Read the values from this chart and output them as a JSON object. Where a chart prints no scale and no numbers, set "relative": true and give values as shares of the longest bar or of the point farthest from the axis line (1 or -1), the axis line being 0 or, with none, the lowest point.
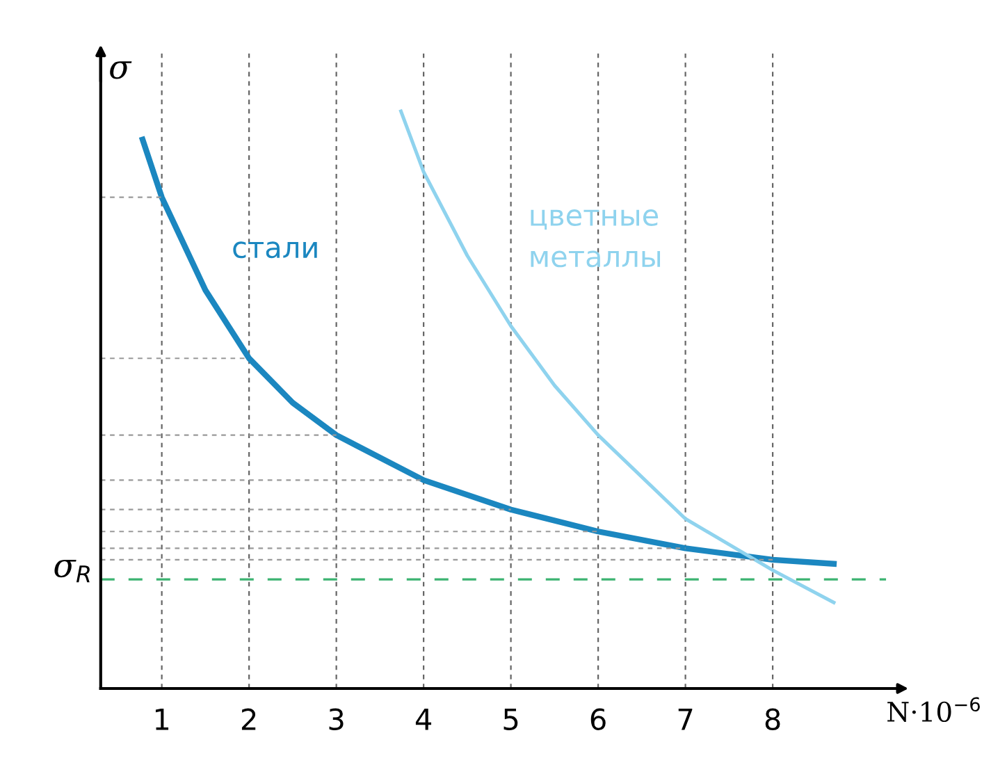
{
  "chart_data": {
    "type": "line",
    "relative": true,
    "xlabel": "N·10$^{−6}$",
    "ylabel": "σ",
    "xlim": [
      0.3,
      9.3
    ],
    "xticks": [
      1,
      2,
      3,
      4,
      5,
      6,
      7,
      8
    ],
    "grid": "x",
    "series": [
      {
        "name": "стали",
        "color": "#1b87c0",
        "x": [
          0.78,
          1,
          1.5,
          2,
          2.5,
          3,
          4,
          5,
          6,
          7,
          8,
          8.7
        ],
        "values": [
          0.951,
          0.851,
          0.69,
          0.572,
          0.495,
          0.439,
          0.361,
          0.31,
          0.272,
          0.243,
          0.223,
          0.216
        ]
      },
      {
        "name": "цветные металлы",
        "color": "#8fd3ee",
        "x": [
          3.74,
          4,
          4.5,
          5,
          5.5,
          6,
          7,
          8,
          8.7
        ],
        "values": [
          1,
          0.895,
          0.75,
          0.628,
          0.525,
          0.439,
          0.294,
          0.205,
          0.149
        ]
      },
      {
        "color": "#999999",
        "line_style": "dotted",
        "x": [
          0.3,
          1
        ],
        "values": [
          0.851,
          0.851
        ]
      },
      {
        "color": "#999999",
        "line_style": "dotted",
        "x": [
          0.3,
          2
        ],
        "values": [
          0.572,
          0.572
        ]
      },
      {
        "color": "#999999",
        "line_style": "dotted",
        "x": [
          0.3,
          3
        ],
        "values": [
          0.439,
          0.439
        ]
      },
      {
        "color": "#999999",
        "line_style": "dotted",
        "x": [
          0.3,
          4
        ],
        "values": [
          0.361,
          0.361
        ]
      },
      {
        "color": "#999999",
        "line_style": "dotted",
        "x": [
          0.3,
          5
        ],
        "values": [
          0.31,
          0.31
        ]
      },
      {
        "color": "#999999",
        "line_style": "dotted",
        "x": [
          0.3,
          6
        ],
        "values": [
          0.272,
          0.272
        ]
      },
      {
        "color": "#999999",
        "line_style": "dotted",
        "x": [
          0.3,
          7
        ],
        "values": [
          0.243,
          0.243
        ]
      },
      {
        "color": "#999999",
        "line_style": "dotted",
        "x": [
          0.3,
          8
        ],
        "values": [
          0.223,
          0.223
        ]
      }
    ],
    "ref_lines": [
      {
        "axis": "y",
        "value": 0.189,
        "label": "σ$_{R}$",
        "color": "#3cb371",
        "line_style": "dashed"
      }
    ]
  }
}
